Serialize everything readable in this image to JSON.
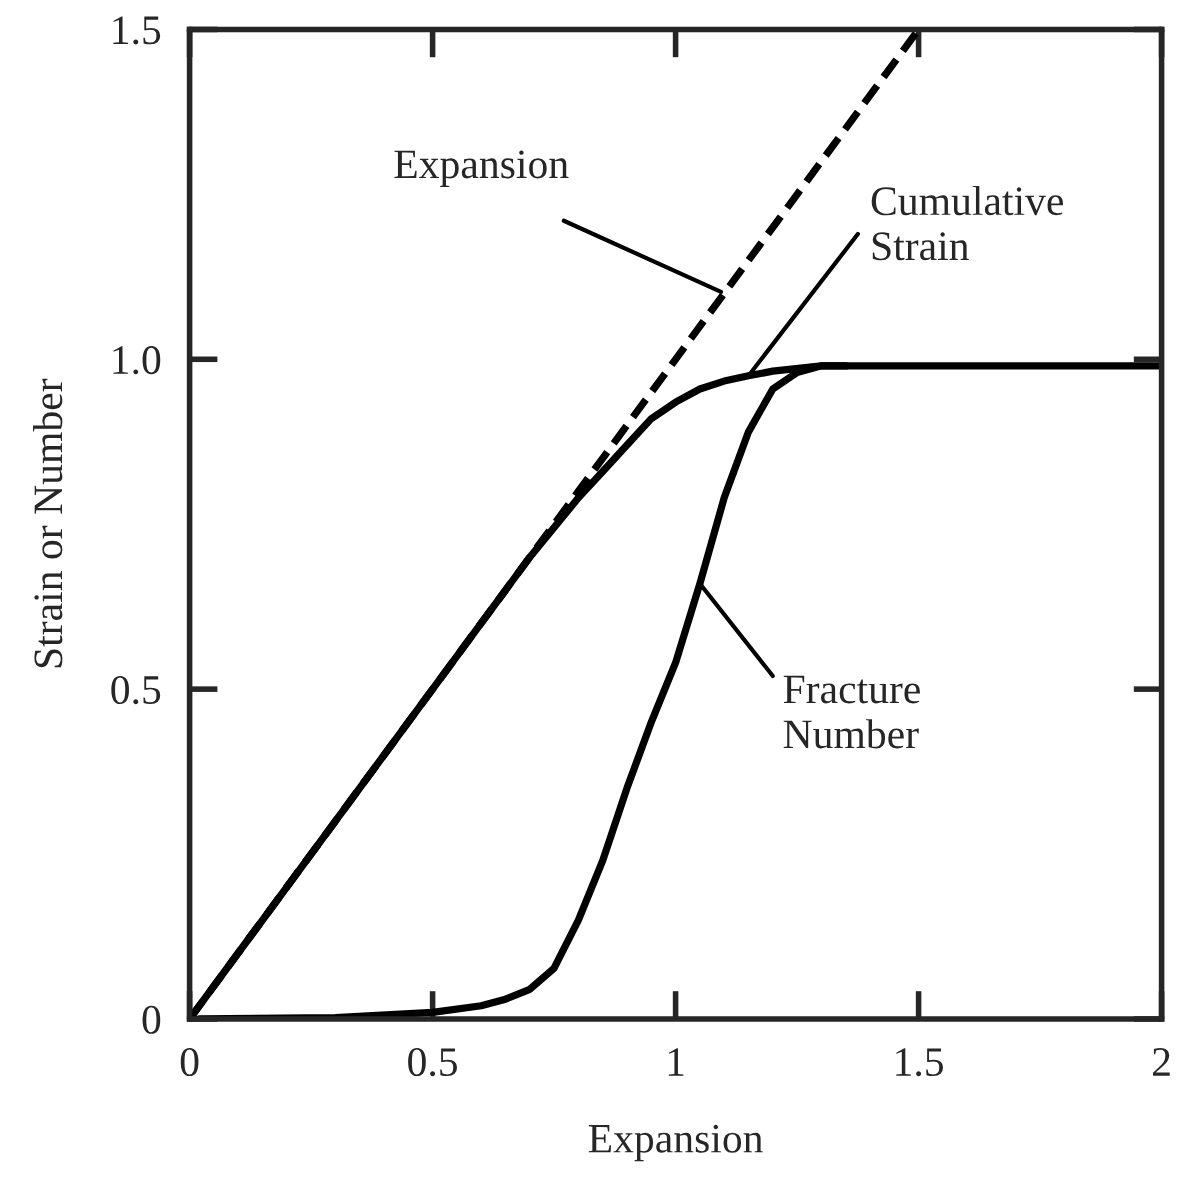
{
  "chart_data": {
    "type": "line",
    "xlabel": "Expansion",
    "ylabel": "Strain or Number",
    "xlim": [
      0,
      2
    ],
    "ylim": [
      0,
      1.5
    ],
    "xticks": [
      0,
      0.5,
      1,
      1.5,
      2
    ],
    "yticks": [
      0,
      0.5,
      {
        "value": 1.0,
        "label": "1.0"
      },
      1.5
    ],
    "grid": false,
    "legend": false,
    "marker": "none",
    "series": [
      {
        "color": "#000000",
        "line_style": "dashed",
        "x": [
          0,
          1.5
        ],
        "values": [
          0,
          1.5
        ]
      },
      {
        "color": "#000000",
        "line_style": "solid",
        "x": [
          0,
          0.1,
          0.2,
          0.3,
          0.4,
          0.5,
          0.6,
          0.7,
          0.75,
          0.8,
          0.85,
          0.9,
          0.95,
          1.0,
          1.05,
          1.1,
          1.15,
          1.2,
          1.3,
          1.4,
          1.6,
          1.8,
          2.0
        ],
        "values": [
          0,
          0.1,
          0.2,
          0.3,
          0.4,
          0.5,
          0.6,
          0.7,
          0.745,
          0.79,
          0.83,
          0.87,
          0.91,
          0.935,
          0.955,
          0.967,
          0.975,
          0.982,
          0.99,
          0.99,
          0.99,
          0.99,
          0.99
        ]
      },
      {
        "color": "#000000",
        "line_style": "solid",
        "x": [
          0.02,
          0.3,
          0.5,
          0.6,
          0.65,
          0.7,
          0.75,
          0.8,
          0.85,
          0.9,
          0.95,
          1.0,
          1.05,
          1.1,
          1.15,
          1.2,
          1.25,
          1.3,
          1.35
        ],
        "values": [
          0,
          0.002,
          0.01,
          0.02,
          0.03,
          0.045,
          0.077,
          0.15,
          0.24,
          0.35,
          0.45,
          0.54,
          0.66,
          0.79,
          0.89,
          0.955,
          0.98,
          0.99,
          0.99
        ]
      }
    ],
    "annotations": [
      {
        "text": "Expansion",
        "x": 1.1,
        "y": 1.1
      },
      {
        "text": "Cumulative\nStrain",
        "x": 1.15,
        "y": 0.975
      },
      {
        "text": "Fracture\nNumber",
        "x": 1.05,
        "y": 0.66
      }
    ]
  }
}
